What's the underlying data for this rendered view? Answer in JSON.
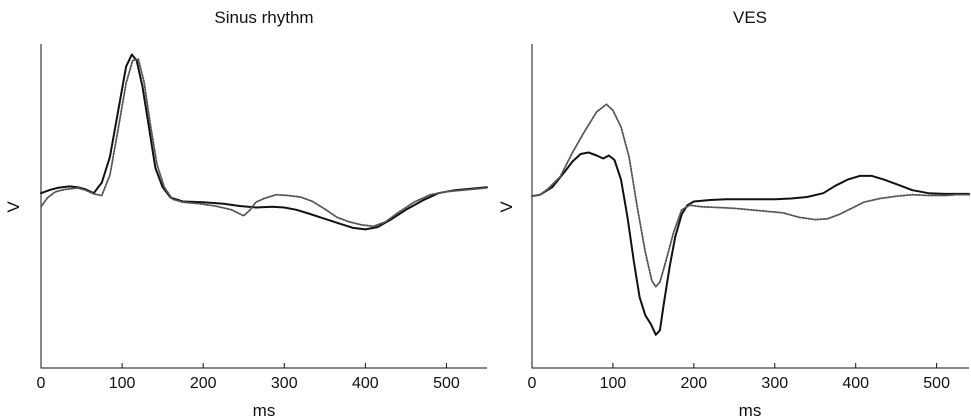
{
  "chart_data": [
    {
      "type": "line",
      "title": "Sinus rhythm",
      "xlabel": "ms",
      "ylabel": "V",
      "xlim": [
        0,
        550
      ],
      "ylim": [
        -1.15,
        1.0
      ],
      "xticks": [
        0,
        100,
        200,
        300,
        400,
        500
      ],
      "grid": false,
      "series": [
        {
          "style": "solid",
          "color": "#111111",
          "points": [
            [
              0,
              0.01
            ],
            [
              10,
              0.03
            ],
            [
              20,
              0.045
            ],
            [
              35,
              0.055
            ],
            [
              45,
              0.05
            ],
            [
              55,
              0.035
            ],
            [
              65,
              0.01
            ],
            [
              75,
              0.08
            ],
            [
              85,
              0.25
            ],
            [
              95,
              0.55
            ],
            [
              105,
              0.85
            ],
            [
              112,
              0.93
            ],
            [
              118,
              0.89
            ],
            [
              125,
              0.72
            ],
            [
              133,
              0.45
            ],
            [
              141,
              0.18
            ],
            [
              150,
              0.05
            ],
            [
              160,
              -0.02
            ],
            [
              175,
              -0.045
            ],
            [
              200,
              -0.05
            ],
            [
              225,
              -0.06
            ],
            [
              245,
              -0.075
            ],
            [
              265,
              -0.085
            ],
            [
              285,
              -0.08
            ],
            [
              300,
              -0.085
            ],
            [
              315,
              -0.1
            ],
            [
              330,
              -0.125
            ],
            [
              350,
              -0.16
            ],
            [
              370,
              -0.195
            ],
            [
              385,
              -0.22
            ],
            [
              400,
              -0.23
            ],
            [
              415,
              -0.215
            ],
            [
              430,
              -0.17
            ],
            [
              450,
              -0.1
            ],
            [
              470,
              -0.04
            ],
            [
              490,
              0.01
            ],
            [
              510,
              0.03
            ],
            [
              530,
              0.04
            ],
            [
              550,
              0.05
            ]
          ]
        },
        {
          "style": "dotted",
          "color": "#555555",
          "points": [
            [
              0,
              -0.08
            ],
            [
              8,
              -0.02
            ],
            [
              18,
              0.02
            ],
            [
              30,
              0.035
            ],
            [
              45,
              0.045
            ],
            [
              55,
              0.03
            ],
            [
              65,
              0.005
            ],
            [
              75,
              -0.005
            ],
            [
              85,
              0.13
            ],
            [
              95,
              0.43
            ],
            [
              105,
              0.74
            ],
            [
              113,
              0.89
            ],
            [
              120,
              0.9
            ],
            [
              127,
              0.75
            ],
            [
              135,
              0.46
            ],
            [
              143,
              0.2
            ],
            [
              152,
              0.05
            ],
            [
              162,
              -0.03
            ],
            [
              175,
              -0.05
            ],
            [
              195,
              -0.06
            ],
            [
              215,
              -0.075
            ],
            [
              235,
              -0.1
            ],
            [
              250,
              -0.14
            ],
            [
              258,
              -0.1
            ],
            [
              265,
              -0.05
            ],
            [
              275,
              -0.025
            ],
            [
              290,
              0.0
            ],
            [
              305,
              -0.005
            ],
            [
              320,
              -0.015
            ],
            [
              335,
              -0.045
            ],
            [
              350,
              -0.095
            ],
            [
              365,
              -0.15
            ],
            [
              380,
              -0.18
            ],
            [
              395,
              -0.2
            ],
            [
              410,
              -0.21
            ],
            [
              425,
              -0.18
            ],
            [
              440,
              -0.12
            ],
            [
              460,
              -0.05
            ],
            [
              480,
              0.0
            ],
            [
              500,
              0.02
            ],
            [
              520,
              0.03
            ],
            [
              540,
              0.04
            ],
            [
              550,
              0.045
            ]
          ]
        }
      ]
    },
    {
      "type": "line",
      "title": "VES",
      "xlabel": "ms",
      "ylabel": "V",
      "xlim": [
        0,
        540
      ],
      "ylim": [
        -1.15,
        1.0
      ],
      "xticks": [
        0,
        100,
        200,
        300,
        400,
        500
      ],
      "grid": false,
      "series": [
        {
          "style": "solid",
          "color": "#111111",
          "points": [
            [
              0,
              -0.01
            ],
            [
              10,
              0.0
            ],
            [
              25,
              0.05
            ],
            [
              40,
              0.15
            ],
            [
              50,
              0.22
            ],
            [
              60,
              0.27
            ],
            [
              70,
              0.28
            ],
            [
              80,
              0.26
            ],
            [
              88,
              0.24
            ],
            [
              95,
              0.26
            ],
            [
              102,
              0.23
            ],
            [
              110,
              0.1
            ],
            [
              118,
              -0.15
            ],
            [
              126,
              -0.45
            ],
            [
              133,
              -0.68
            ],
            [
              140,
              -0.8
            ],
            [
              147,
              -0.86
            ],
            [
              153,
              -0.93
            ],
            [
              158,
              -0.9
            ],
            [
              163,
              -0.72
            ],
            [
              170,
              -0.48
            ],
            [
              177,
              -0.28
            ],
            [
              185,
              -0.13
            ],
            [
              192,
              -0.07
            ],
            [
              200,
              -0.045
            ],
            [
              220,
              -0.035
            ],
            [
              240,
              -0.03
            ],
            [
              260,
              -0.03
            ],
            [
              280,
              -0.03
            ],
            [
              300,
              -0.03
            ],
            [
              320,
              -0.025
            ],
            [
              340,
              -0.015
            ],
            [
              360,
              0.01
            ],
            [
              375,
              0.06
            ],
            [
              390,
              0.1
            ],
            [
              405,
              0.125
            ],
            [
              420,
              0.125
            ],
            [
              435,
              0.1
            ],
            [
              450,
              0.07
            ],
            [
              470,
              0.03
            ],
            [
              490,
              0.01
            ],
            [
              510,
              0.005
            ],
            [
              525,
              0.005
            ],
            [
              540,
              0.005
            ]
          ]
        },
        {
          "style": "dotted",
          "color": "#555555",
          "points": [
            [
              0,
              -0.01
            ],
            [
              10,
              0.0
            ],
            [
              20,
              0.04
            ],
            [
              35,
              0.12
            ],
            [
              50,
              0.28
            ],
            [
              65,
              0.42
            ],
            [
              80,
              0.55
            ],
            [
              92,
              0.6
            ],
            [
              100,
              0.56
            ],
            [
              110,
              0.45
            ],
            [
              120,
              0.25
            ],
            [
              130,
              -0.08
            ],
            [
              140,
              -0.38
            ],
            [
              148,
              -0.57
            ],
            [
              153,
              -0.61
            ],
            [
              158,
              -0.58
            ],
            [
              165,
              -0.45
            ],
            [
              175,
              -0.25
            ],
            [
              185,
              -0.1
            ],
            [
              195,
              -0.07
            ],
            [
              210,
              -0.08
            ],
            [
              230,
              -0.085
            ],
            [
              250,
              -0.09
            ],
            [
              270,
              -0.1
            ],
            [
              290,
              -0.11
            ],
            [
              310,
              -0.12
            ],
            [
              330,
              -0.15
            ],
            [
              350,
              -0.165
            ],
            [
              365,
              -0.16
            ],
            [
              380,
              -0.13
            ],
            [
              395,
              -0.09
            ],
            [
              410,
              -0.05
            ],
            [
              430,
              -0.025
            ],
            [
              450,
              -0.01
            ],
            [
              470,
              0.0
            ],
            [
              490,
              -0.005
            ],
            [
              510,
              -0.005
            ],
            [
              525,
              0.0
            ],
            [
              540,
              0.0
            ]
          ]
        }
      ]
    }
  ]
}
